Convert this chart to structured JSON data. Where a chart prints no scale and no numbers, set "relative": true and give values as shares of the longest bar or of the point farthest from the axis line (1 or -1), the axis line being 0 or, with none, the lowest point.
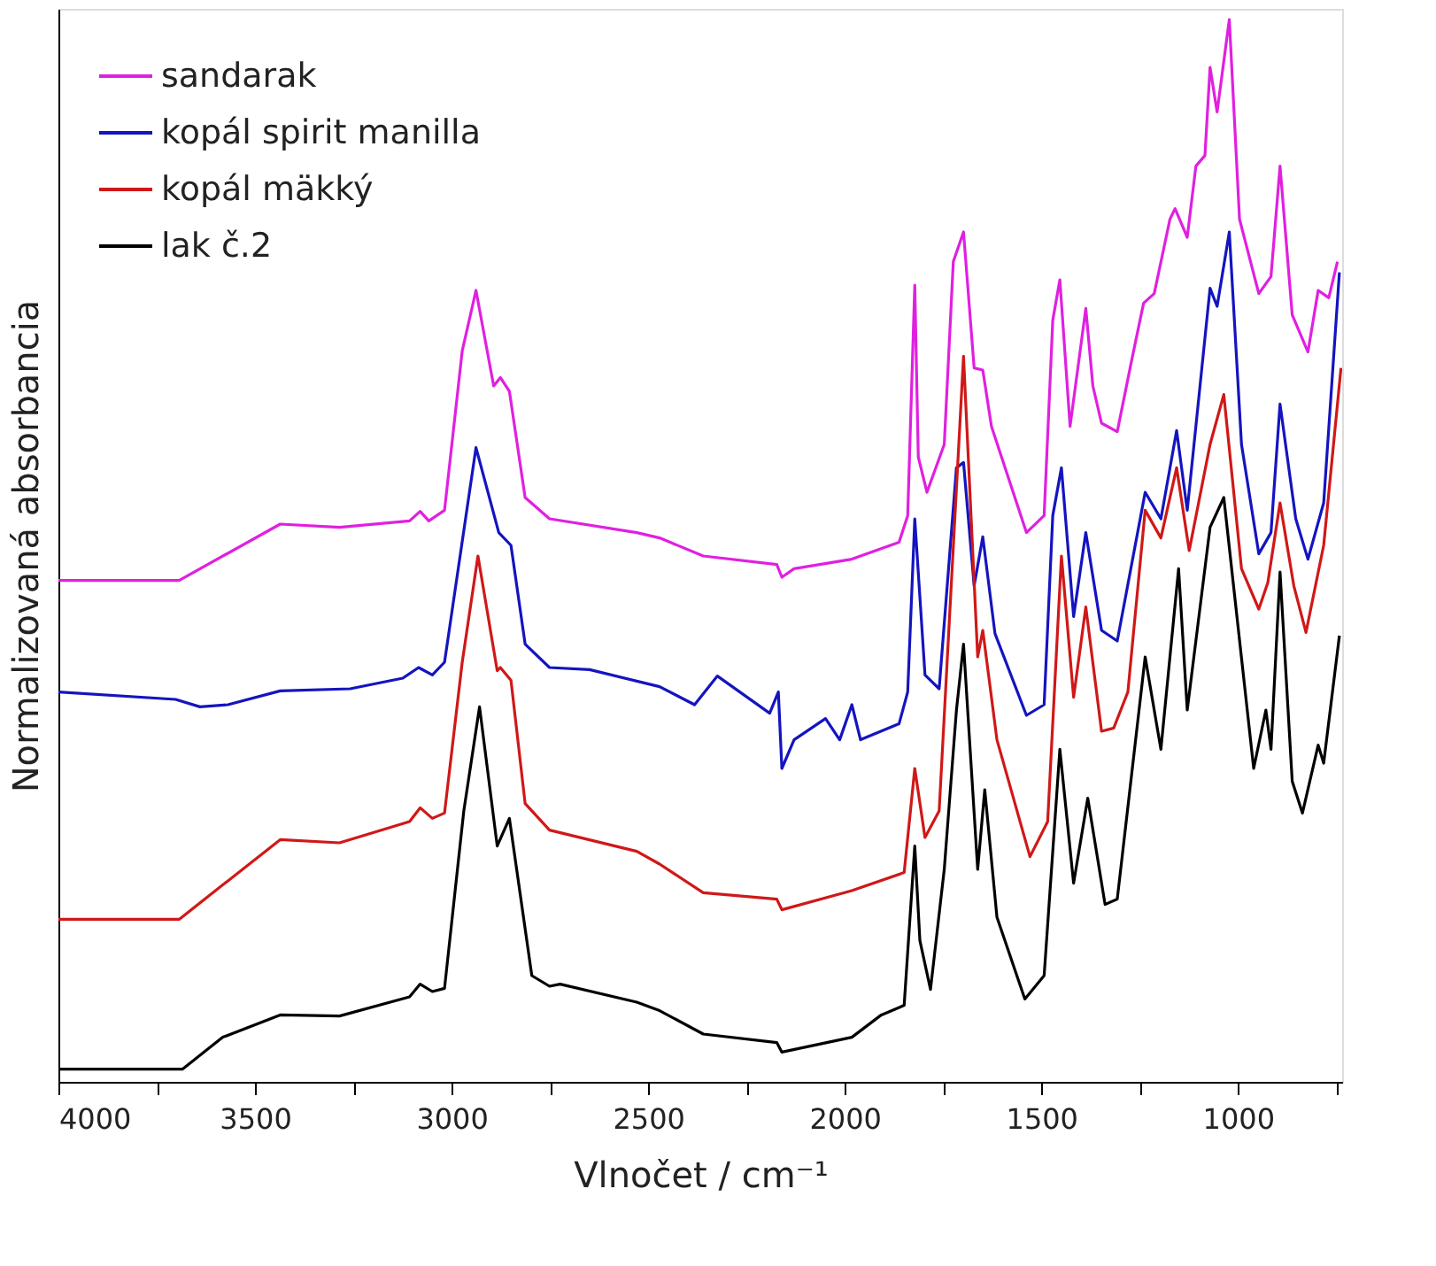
{
  "chart_data": {
    "type": "line",
    "relative": true,
    "xlabel": "Vlnočet / cm⁻¹",
    "ylabel": "Normalizovaná absorbancia",
    "xlim": [
      4000,
      735
    ],
    "xticks": [
      4000,
      {
        "value": 3750,
        "label": null
      },
      3500,
      {
        "value": 3250,
        "label": null
      },
      3000,
      {
        "value": 2750,
        "label": null
      },
      2500,
      {
        "value": 2250,
        "label": null
      },
      2000,
      {
        "value": 1750,
        "label": null
      },
      1500,
      {
        "value": 1250,
        "label": null
      },
      1000,
      {
        "value": 750,
        "label": null
      }
    ],
    "tick_labels": "x",
    "grid": false,
    "legend": "top left",
    "marker": "none",
    "line_style": "solid",
    "series": [
      {
        "name": "sandarak",
        "color": "#e020e0",
        "x": [
          4000,
          3693,
          3436,
          3285,
          3107,
          3080,
          3058,
          3018,
          2973,
          2938,
          2893,
          2876,
          2853,
          2813,
          2751,
          2529,
          2471,
          2360,
          2173,
          2160,
          2129,
          1982,
          1862,
          1840,
          1822,
          1813,
          1791,
          1747,
          1724,
          1698,
          1671,
          1649,
          1627,
          1538,
          1493,
          1471,
          1453,
          1427,
          1387,
          1369,
          1347,
          1307,
          1271,
          1240,
          1213,
          1173,
          1160,
          1129,
          1107,
          1084,
          1071,
          1053,
          1022,
          996,
          947,
          916,
          893,
          862,
          822,
          796,
          769,
          747
        ],
        "values": [
          0.472,
          0.472,
          0.525,
          0.522,
          0.528,
          0.537,
          0.528,
          0.538,
          0.688,
          0.745,
          0.655,
          0.663,
          0.65,
          0.55,
          0.53,
          0.517,
          0.512,
          0.495,
          0.487,
          0.475,
          0.483,
          0.492,
          0.508,
          0.533,
          0.75,
          0.588,
          0.555,
          0.6,
          0.772,
          0.8,
          0.672,
          0.67,
          0.617,
          0.517,
          0.533,
          0.717,
          0.755,
          0.617,
          0.728,
          0.655,
          0.62,
          0.612,
          0.678,
          0.733,
          0.742,
          0.812,
          0.822,
          0.795,
          0.862,
          0.872,
          0.955,
          0.913,
          1.0,
          0.812,
          0.742,
          0.758,
          0.862,
          0.722,
          0.687,
          0.745,
          0.738,
          0.772
        ]
      },
      {
        "name": "kopál spirit manilla",
        "color": "#1414c0",
        "x": [
          4000,
          3702,
          3640,
          3569,
          3436,
          3258,
          3124,
          3084,
          3049,
          3018,
          2938,
          2880,
          2849,
          2813,
          2751,
          2649,
          2471,
          2382,
          2324,
          2191,
          2169,
          2160,
          2129,
          2049,
          2013,
          1982,
          1960,
          1862,
          1840,
          1822,
          1796,
          1760,
          1716,
          1698,
          1671,
          1649,
          1618,
          1538,
          1493,
          1471,
          1449,
          1418,
          1387,
          1347,
          1307,
          1236,
          1196,
          1156,
          1129,
          1071,
          1053,
          1022,
          991,
          947,
          916,
          893,
          853,
          822,
          782,
          742
        ],
        "values": [
          0.367,
          0.36,
          0.353,
          0.355,
          0.368,
          0.37,
          0.38,
          0.39,
          0.383,
          0.395,
          0.597,
          0.517,
          0.505,
          0.412,
          0.39,
          0.388,
          0.372,
          0.355,
          0.382,
          0.347,
          0.367,
          0.295,
          0.322,
          0.342,
          0.322,
          0.355,
          0.322,
          0.337,
          0.367,
          0.53,
          0.383,
          0.37,
          0.578,
          0.583,
          0.467,
          0.513,
          0.422,
          0.345,
          0.355,
          0.533,
          0.578,
          0.438,
          0.517,
          0.425,
          0.415,
          0.555,
          0.53,
          0.613,
          0.538,
          0.747,
          0.73,
          0.8,
          0.6,
          0.497,
          0.517,
          0.638,
          0.53,
          0.492,
          0.545,
          0.762
        ]
      },
      {
        "name": "kopál mäkký",
        "color": "#d01818",
        "x": [
          4000,
          3693,
          3436,
          3285,
          3107,
          3080,
          3049,
          3018,
          2973,
          2933,
          2884,
          2876,
          2849,
          2813,
          2751,
          2529,
          2471,
          2360,
          2173,
          2160,
          1982,
          1849,
          1822,
          1796,
          1760,
          1698,
          1662,
          1649,
          1613,
          1529,
          1484,
          1449,
          1418,
          1387,
          1347,
          1316,
          1280,
          1236,
          1196,
          1156,
          1124,
          1071,
          1036,
          991,
          947,
          924,
          893,
          858,
          827,
          782,
          738
        ],
        "values": [
          0.153,
          0.153,
          0.228,
          0.225,
          0.245,
          0.258,
          0.248,
          0.253,
          0.395,
          0.495,
          0.387,
          0.39,
          0.378,
          0.262,
          0.237,
          0.217,
          0.205,
          0.178,
          0.172,
          0.162,
          0.18,
          0.197,
          0.295,
          0.23,
          0.255,
          0.683,
          0.4,
          0.425,
          0.322,
          0.212,
          0.245,
          0.495,
          0.362,
          0.447,
          0.33,
          0.333,
          0.367,
          0.538,
          0.512,
          0.578,
          0.5,
          0.6,
          0.647,
          0.483,
          0.445,
          0.47,
          0.545,
          0.467,
          0.423,
          0.505,
          0.672
        ]
      },
      {
        "name": "lak č.2",
        "color": "#000000",
        "x": [
          4000,
          3684,
          3582,
          3436,
          3285,
          3107,
          3080,
          3049,
          3018,
          2969,
          2929,
          2884,
          2853,
          2796,
          2751,
          2724,
          2529,
          2471,
          2360,
          2173,
          2160,
          1982,
          1907,
          1849,
          1822,
          1809,
          1782,
          1747,
          1716,
          1698,
          1662,
          1644,
          1613,
          1542,
          1493,
          1453,
          1418,
          1382,
          1338,
          1307,
          1236,
          1196,
          1151,
          1129,
          1071,
          1036,
          960,
          929,
          916,
          893,
          862,
          836,
          796,
          782,
          742
        ],
        "values": [
          0.012,
          0.012,
          0.042,
          0.063,
          0.062,
          0.08,
          0.092,
          0.085,
          0.088,
          0.255,
          0.353,
          0.222,
          0.248,
          0.1,
          0.09,
          0.092,
          0.075,
          0.067,
          0.045,
          0.037,
          0.028,
          0.042,
          0.063,
          0.072,
          0.222,
          0.133,
          0.087,
          0.2,
          0.35,
          0.412,
          0.2,
          0.275,
          0.155,
          0.078,
          0.1,
          0.313,
          0.187,
          0.267,
          0.167,
          0.172,
          0.4,
          0.313,
          0.483,
          0.35,
          0.522,
          0.55,
          0.295,
          0.35,
          0.313,
          0.48,
          0.283,
          0.253,
          0.317,
          0.3,
          0.42
        ]
      }
    ]
  }
}
